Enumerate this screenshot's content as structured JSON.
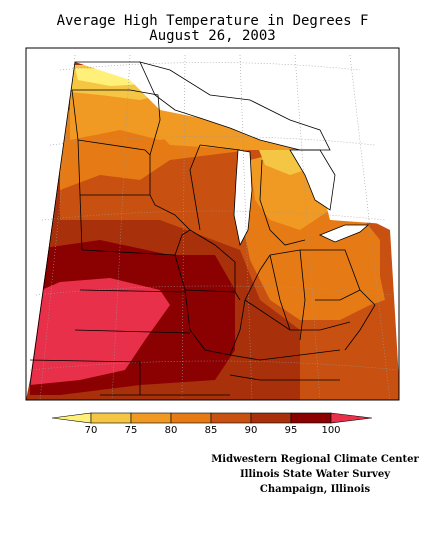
{
  "title_line1": "Average High Temperature in Degrees F",
  "title_line2": "August 26, 2003",
  "legend": {
    "ticks": [
      "70",
      "75",
      "80",
      "85",
      "90",
      "95",
      "100"
    ],
    "colors": [
      "#FFF07A",
      "#F5C544",
      "#F09A24",
      "#E67A14",
      "#C85010",
      "#A8300A",
      "#8B0000",
      "#E8304A"
    ]
  },
  "credits": {
    "line1": "Midwestern Regional Climate Center",
    "line2": "Illinois State Water Survey",
    "line3": "Champaign, Illinois"
  }
}
